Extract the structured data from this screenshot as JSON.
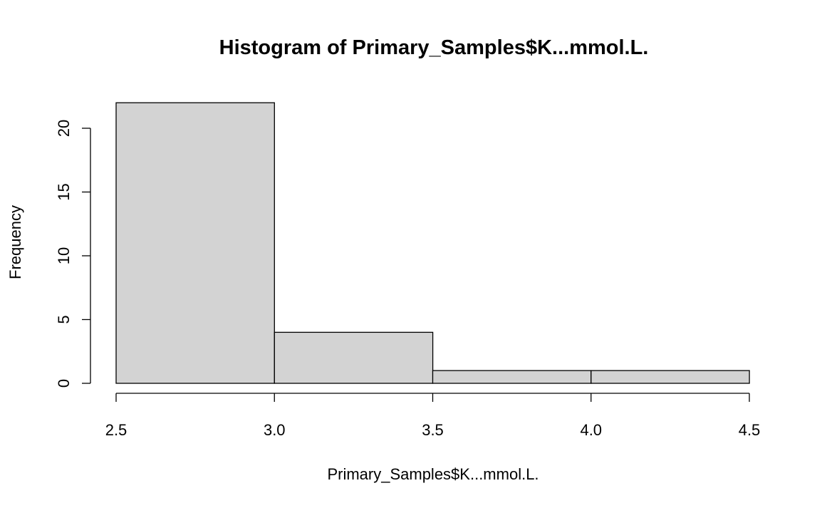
{
  "chart_data": {
    "type": "bar",
    "title": "Histogram of Primary_Samples$K...mmol.L.",
    "xlabel": "Primary_Samples$K...mmol.L.",
    "ylabel": "Frequency",
    "bins": [
      {
        "x_start": 2.5,
        "x_end": 3.0,
        "count": 22
      },
      {
        "x_start": 3.0,
        "x_end": 3.5,
        "count": 4
      },
      {
        "x_start": 3.5,
        "x_end": 4.0,
        "count": 1
      },
      {
        "x_start": 4.0,
        "x_end": 4.5,
        "count": 1
      }
    ],
    "x_ticks": [
      "2.5",
      "3.0",
      "3.5",
      "4.0",
      "4.5"
    ],
    "y_ticks": [
      "0",
      "5",
      "10",
      "15",
      "20"
    ],
    "xlim": [
      2.5,
      4.5
    ],
    "ylim": [
      0,
      22
    ],
    "grid": false,
    "bar_fill": "#d3d3d3",
    "bar_stroke": "#000000"
  }
}
